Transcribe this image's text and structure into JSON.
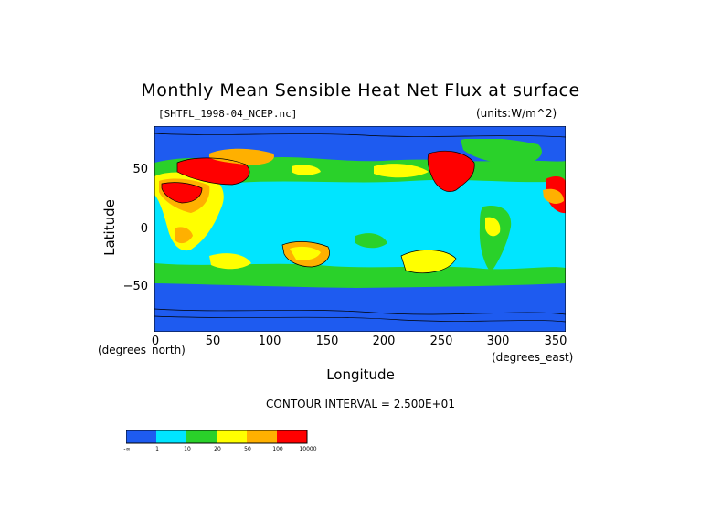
{
  "title": "Monthly Mean Sensible Heat Net Flux at surface",
  "source_file": "[SHTFL_1998-04_NCEP.nc]",
  "units": "(units:W/m^2)",
  "y_axis": {
    "label": "Latitude",
    "ticks": [
      "50",
      "0",
      "−50"
    ],
    "unit_note": "(degrees_north)"
  },
  "x_axis": {
    "label": "Longitude",
    "ticks": [
      "0",
      "50",
      "100",
      "150",
      "200",
      "250",
      "300",
      "350"
    ],
    "unit_note": "(degrees_east)"
  },
  "contour_interval": "CONTOUR INTERVAL = 2.500E+01",
  "colorbar": {
    "colors": [
      "#1e5bf0",
      "#00e5ff",
      "#2ad12a",
      "#ffff00",
      "#ffb000",
      "#ff0000"
    ],
    "labels": [
      "-∞",
      "1",
      "10",
      "20",
      "50",
      "100",
      "10000"
    ]
  },
  "chart_data": {
    "type": "heatmap",
    "title": "Monthly Mean Sensible Heat Net Flux at surface",
    "xlabel": "Longitude",
    "ylabel": "Latitude",
    "xlim": [
      0,
      360
    ],
    "ylim": [
      -90,
      90
    ],
    "levels": [
      "-∞",
      1,
      10,
      20,
      50,
      100,
      10000
    ],
    "level_colors": [
      "#1e5bf0",
      "#00e5ff",
      "#2ad12a",
      "#ffff00",
      "#ffb000",
      "#ff0000"
    ]
  }
}
